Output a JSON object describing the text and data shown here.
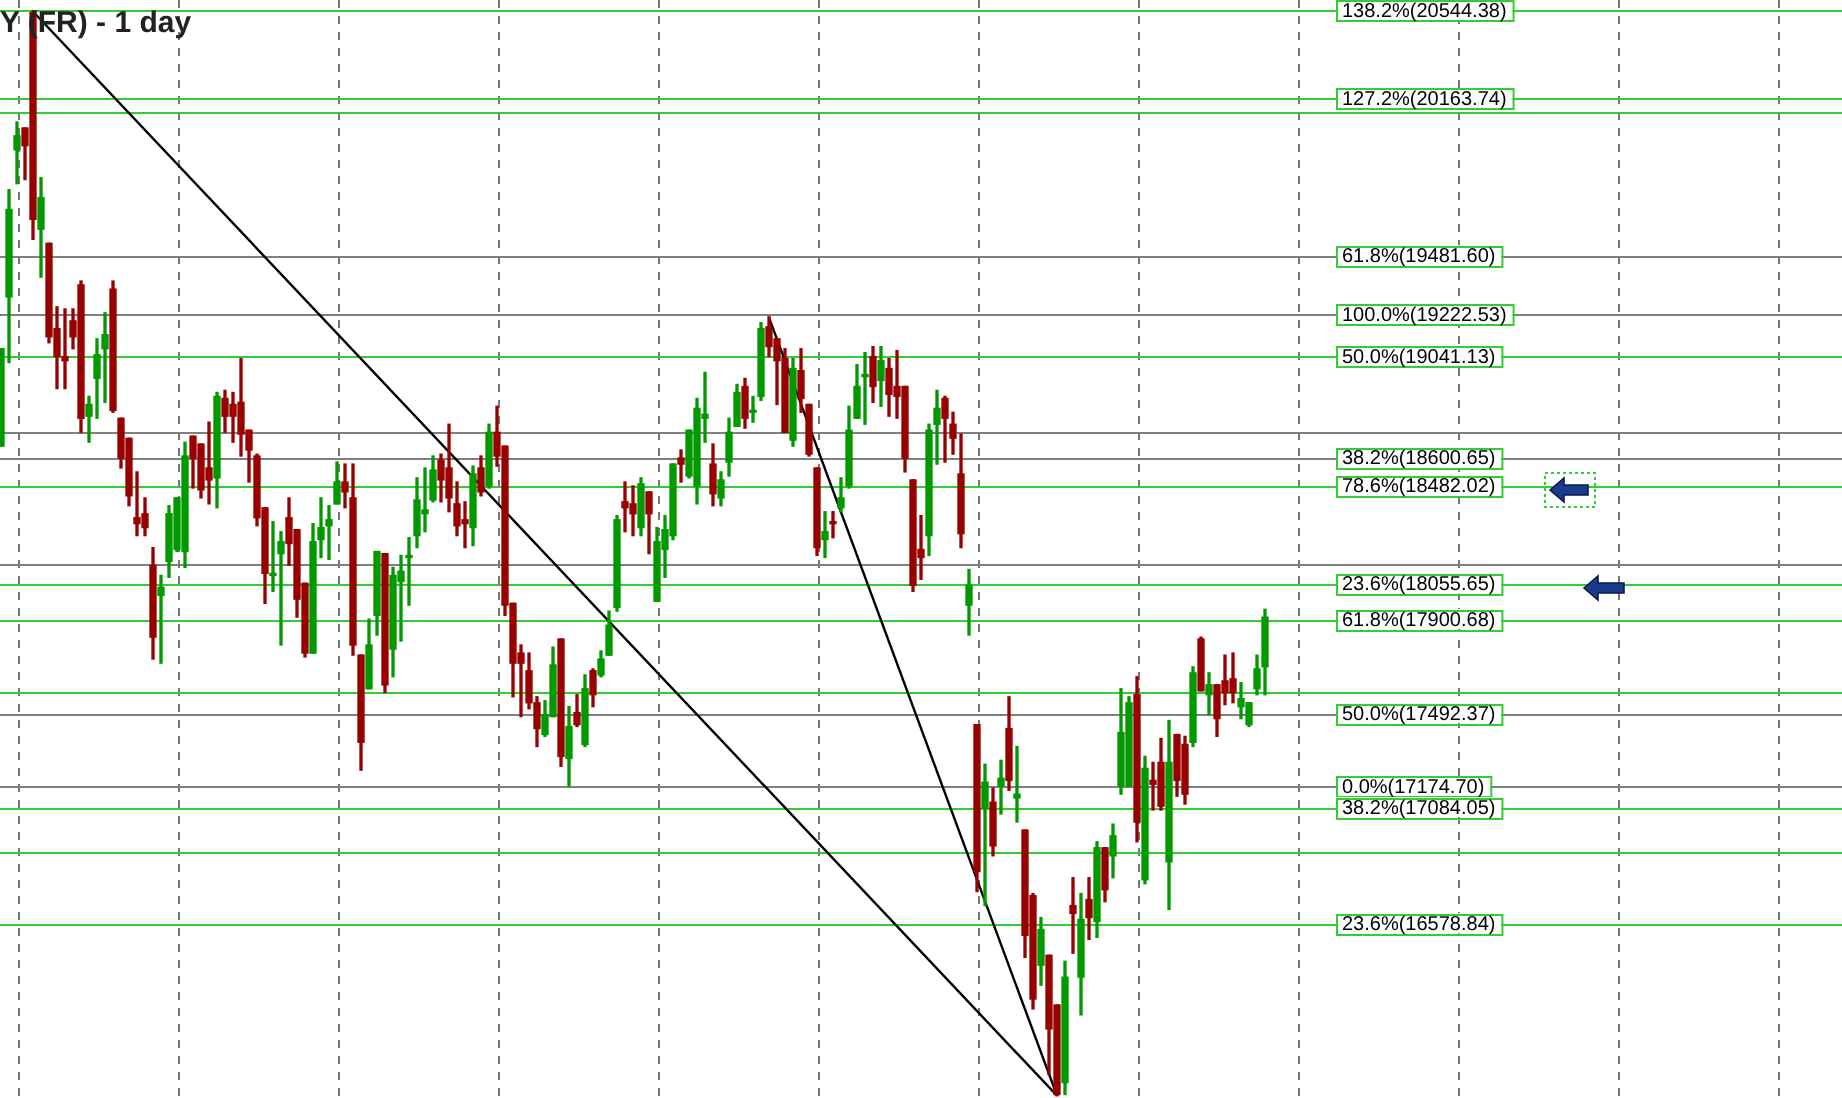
{
  "chart_data": {
    "type": "candlestick",
    "title": "Y (FR) - 1 day",
    "categories": [
      null,
      null,
      null,
      null,
      null,
      null,
      null,
      null,
      null,
      null,
      null,
      null,
      null,
      null,
      null,
      null,
      null,
      null,
      null,
      null,
      null,
      null,
      null,
      null,
      null,
      null,
      null,
      null,
      null,
      null,
      null,
      null,
      null,
      null,
      null,
      null,
      null,
      null,
      null,
      null,
      null,
      null,
      null,
      null,
      null,
      null,
      null,
      null,
      null,
      null,
      null,
      null,
      null,
      null,
      null,
      null,
      null,
      null,
      null,
      null,
      null,
      null,
      null,
      null,
      null,
      null,
      null,
      null,
      null,
      null,
      null,
      null,
      null,
      null,
      null,
      null,
      null,
      null,
      null,
      null,
      null,
      null,
      null,
      null,
      null,
      null,
      null,
      null,
      null,
      null,
      null,
      null,
      null,
      null,
      null,
      null,
      null,
      null,
      null,
      null,
      null,
      null,
      null,
      null,
      null,
      null,
      null,
      null,
      null,
      null,
      null,
      null,
      null,
      null,
      null,
      null,
      null,
      null,
      null,
      null,
      null,
      null,
      null,
      null,
      null,
      null,
      null,
      null,
      null,
      null,
      null,
      null,
      null,
      null,
      null,
      null,
      null,
      null,
      null,
      null,
      null,
      null,
      null,
      null,
      null,
      null,
      null,
      null,
      null,
      null,
      null,
      null,
      null,
      null,
      null,
      null,
      null,
      null,
      null
    ],
    "ohlc": [
      [
        18652,
        19075,
        18652,
        19075
      ],
      [
        19300,
        19766,
        19015,
        19680
      ],
      [
        19939,
        20060,
        19792,
        20000
      ],
      [
        20034,
        20034,
        19810,
        19957
      ],
      [
        20535,
        20544,
        19550,
        19637
      ],
      [
        19594,
        19818,
        19386,
        19732
      ],
      [
        19533,
        19533,
        19101,
        19127
      ],
      [
        19162,
        19257,
        18902,
        19041
      ],
      [
        19041,
        19248,
        18902,
        19023
      ],
      [
        19196,
        19248,
        19075,
        19127
      ],
      [
        19352,
        19369,
        18712,
        18773
      ],
      [
        18782,
        18868,
        18669,
        18833
      ],
      [
        18946,
        19118,
        18773,
        19049
      ],
      [
        19075,
        19231,
        18842,
        19136
      ],
      [
        19334,
        19369,
        18799,
        18807
      ],
      [
        18773,
        18773,
        18557,
        18600
      ],
      [
        18686,
        18686,
        18393,
        18436
      ],
      [
        18341,
        18540,
        18263,
        18315
      ],
      [
        18358,
        18427,
        18263,
        18298
      ],
      [
        18134,
        18211,
        17727,
        17822
      ],
      [
        18004,
        18090,
        17709,
        18038
      ],
      [
        18151,
        18393,
        18082,
        18358
      ],
      [
        18203,
        18427,
        18194,
        18427
      ],
      [
        18194,
        18669,
        18125,
        18609
      ],
      [
        18695,
        18695,
        18470,
        18600
      ],
      [
        18661,
        18661,
        18427,
        18462
      ],
      [
        18557,
        18756,
        18401,
        18505
      ],
      [
        18514,
        18885,
        18384,
        18868
      ],
      [
        18859,
        18894,
        18712,
        18782
      ],
      [
        18833,
        18885,
        18669,
        18782
      ],
      [
        18842,
        19032,
        18609,
        18704
      ],
      [
        18721,
        18721,
        18496,
        18635
      ],
      [
        18609,
        18617,
        18306,
        18341
      ],
      [
        18384,
        18384,
        17969,
        18099
      ],
      [
        18090,
        18324,
        18021,
        18099
      ],
      [
        18185,
        18280,
        17788,
        18237
      ],
      [
        18341,
        18427,
        18134,
        18229
      ],
      [
        18289,
        18289,
        17909,
        17987
      ],
      [
        18056,
        18056,
        17736,
        17753
      ],
      [
        17753,
        18315,
        17753,
        18237
      ],
      [
        18246,
        18427,
        18168,
        18298
      ],
      [
        18306,
        18393,
        18160,
        18332
      ],
      [
        18401,
        18583,
        18401,
        18496
      ],
      [
        18496,
        18574,
        18384,
        18453
      ],
      [
        18427,
        18574,
        17744,
        17788
      ],
      [
        17744,
        17744,
        17244,
        17365
      ],
      [
        17598,
        17900,
        17598,
        17788
      ],
      [
        17917,
        18194,
        17831,
        18194
      ],
      [
        18185,
        18185,
        17581,
        17615
      ],
      [
        17770,
        18125,
        17650,
        18090
      ],
      [
        18064,
        18177,
        17805,
        18108
      ],
      [
        18168,
        18254,
        17961,
        18177
      ],
      [
        18263,
        18514,
        18211,
        18418
      ],
      [
        18358,
        18557,
        18280,
        18375
      ],
      [
        18418,
        18609,
        18410,
        18548
      ],
      [
        18591,
        18617,
        18410,
        18505
      ],
      [
        18557,
        18747,
        18367,
        18427
      ],
      [
        18401,
        18496,
        18263,
        18306
      ],
      [
        18332,
        18410,
        18211,
        18315
      ],
      [
        18298,
        18565,
        18220,
        18531
      ],
      [
        18557,
        18609,
        18436,
        18453
      ],
      [
        18479,
        18747,
        18470,
        18712
      ],
      [
        18712,
        18825,
        18565,
        18609
      ],
      [
        18652,
        18652,
        17917,
        17961
      ],
      [
        17969,
        17969,
        17563,
        17709
      ],
      [
        17753,
        17788,
        17477,
        17709
      ],
      [
        17676,
        17753,
        17511,
        17537
      ],
      [
        17537,
        17563,
        17347,
        17425
      ],
      [
        17399,
        17546,
        17391,
        17485
      ],
      [
        17477,
        17779,
        17477,
        17701
      ],
      [
        17814,
        17814,
        17261,
        17304
      ],
      [
        17295,
        17520,
        17175,
        17434
      ],
      [
        17494,
        17572,
        17434,
        17442
      ],
      [
        17356,
        17658,
        17347,
        17598
      ],
      [
        17676,
        17684,
        17520,
        17572
      ],
      [
        17658,
        17762,
        17650,
        17727
      ],
      [
        17744,
        17935,
        17744,
        17874
      ],
      [
        17952,
        18350,
        17935,
        18332
      ],
      [
        18410,
        18496,
        18280,
        18384
      ],
      [
        18401,
        18479,
        18263,
        18358
      ],
      [
        18298,
        18514,
        18263,
        18488
      ],
      [
        18453,
        18453,
        18185,
        18358
      ],
      [
        17978,
        18298,
        17978,
        18237
      ],
      [
        18203,
        18350,
        18082,
        18289
      ],
      [
        18263,
        18574,
        18246,
        18574
      ],
      [
        18600,
        18635,
        18496,
        18574
      ],
      [
        18522,
        18721,
        18514,
        18721
      ],
      [
        18479,
        18859,
        18401,
        18816
      ],
      [
        18773,
        18972,
        18669,
        18790
      ],
      [
        18574,
        18661,
        18393,
        18445
      ],
      [
        18427,
        18540,
        18393,
        18505
      ],
      [
        18583,
        18773,
        18522,
        18712
      ],
      [
        18738,
        18920,
        18738,
        18885
      ],
      [
        18911,
        18946,
        18730,
        18773
      ],
      [
        18799,
        18868,
        18756,
        18807
      ],
      [
        18868,
        19188,
        18851,
        19162
      ],
      [
        19170,
        19214,
        19041,
        19084
      ],
      [
        19118,
        19118,
        18833,
        19023
      ],
      [
        19032,
        19075,
        18712,
        18712
      ],
      [
        18678,
        19032,
        18652,
        18989
      ],
      [
        18980,
        19075,
        18799,
        18859
      ],
      [
        18833,
        18833,
        18609,
        18617
      ],
      [
        18557,
        18557,
        18177,
        18211
      ],
      [
        18246,
        18367,
        18168,
        18280
      ],
      [
        18324,
        18367,
        18254,
        18315
      ],
      [
        18384,
        18514,
        18367,
        18427
      ],
      [
        18479,
        18825,
        18470,
        18721
      ],
      [
        18773,
        19006,
        18773,
        18911
      ],
      [
        18954,
        19058,
        18747,
        18963
      ],
      [
        19041,
        19084,
        18842,
        18911
      ],
      [
        18937,
        19084,
        18825,
        19023
      ],
      [
        18989,
        19032,
        18782,
        18877
      ],
      [
        18911,
        19067,
        18773,
        18868
      ],
      [
        18911,
        18911,
        18540,
        18600
      ],
      [
        18505,
        18505,
        18021,
        18047
      ],
      [
        18203,
        18350,
        18073,
        18168
      ],
      [
        18263,
        18747,
        18177,
        18721
      ],
      [
        18747,
        18894,
        18574,
        18816
      ],
      [
        18859,
        18868,
        18583,
        18773
      ],
      [
        18747,
        18799,
        18617,
        18686
      ],
      [
        18531,
        18704,
        18211,
        18272
      ],
      [
        17961,
        18116,
        17831,
        18047
      ],
      [
        17442,
        17442,
        16717,
        16804
      ],
      [
        17079,
        17270,
        16656,
        17192
      ],
      [
        17105,
        17166,
        16872,
        16915
      ],
      [
        17175,
        17287,
        17054,
        17209
      ],
      [
        17425,
        17563,
        17157,
        17200
      ],
      [
        17123,
        17347,
        17019,
        17140
      ],
      [
        16984,
        16984,
        16431,
        16527
      ],
      [
        16699,
        16708,
        16207,
        16250
      ],
      [
        16397,
        16604,
        16310,
        16552
      ],
      [
        16440,
        16440,
        15922,
        16120
      ],
      [
        16224,
        16224,
        15830,
        15835
      ],
      [
        15887,
        16414,
        15835,
        16345
      ],
      [
        16656,
        16777,
        16449,
        16622
      ],
      [
        16345,
        16708,
        16181,
        16596
      ],
      [
        16682,
        16777,
        16509,
        16604
      ],
      [
        16587,
        16933,
        16518,
        16907
      ],
      [
        16907,
        16907,
        16673,
        16725
      ],
      [
        16872,
        17010,
        16777,
        16959
      ],
      [
        17175,
        17598,
        17140,
        17408
      ],
      [
        17175,
        17563,
        17175,
        17537
      ],
      [
        17572,
        17650,
        16933,
        17019
      ],
      [
        16768,
        17304,
        16751,
        17252
      ],
      [
        17200,
        17278,
        17071,
        17183
      ],
      [
        17278,
        17382,
        17071,
        17088
      ],
      [
        16846,
        17460,
        16639,
        17278
      ],
      [
        17399,
        17399,
        17131,
        17200
      ],
      [
        17356,
        17391,
        17097,
        17140
      ],
      [
        17365,
        17693,
        17347,
        17667
      ],
      [
        17814,
        17822,
        17589,
        17589
      ],
      [
        17572,
        17667,
        17485,
        17615
      ],
      [
        17615,
        17615,
        17391,
        17468
      ],
      [
        17632,
        17744,
        17529,
        17581
      ],
      [
        17641,
        17753,
        17537,
        17581
      ],
      [
        17520,
        17624,
        17468,
        17555
      ],
      [
        17442,
        17537,
        17434,
        17537
      ],
      [
        17598,
        17744,
        17572,
        17684
      ],
      [
        17693,
        17943,
        17572,
        17909
      ]
    ],
    "colors": [
      "#009900",
      "#009900",
      "#009900",
      "#990000",
      "#990000",
      "#009900",
      "#990000",
      "#990000",
      "#990000",
      "#990000",
      "#990000",
      "#009900",
      "#009900",
      "#009900",
      "#990000",
      "#990000",
      "#990000",
      "#990000",
      "#990000",
      "#990000",
      "#009900",
      "#009900",
      "#009900",
      "#009900",
      "#990000",
      "#990000",
      "#990000",
      "#009900",
      "#990000",
      "#990000",
      "#990000",
      "#990000",
      "#990000",
      "#990000",
      "#009900",
      "#009900",
      "#990000",
      "#990000",
      "#990000",
      "#009900",
      "#009900",
      "#009900",
      "#009900",
      "#990000",
      "#990000",
      "#990000",
      "#009900",
      "#009900",
      "#990000",
      "#009900",
      "#009900",
      "#009900",
      "#009900",
      "#009900",
      "#009900",
      "#990000",
      "#990000",
      "#990000",
      "#990000",
      "#009900",
      "#990000",
      "#009900",
      "#990000",
      "#990000",
      "#990000",
      "#990000",
      "#990000",
      "#990000",
      "#009900",
      "#009900",
      "#990000",
      "#009900",
      "#990000",
      "#009900",
      "#990000",
      "#009900",
      "#009900",
      "#009900",
      "#990000",
      "#990000",
      "#009900",
      "#990000",
      "#009900",
      "#009900",
      "#009900",
      "#990000",
      "#009900",
      "#009900",
      "#009900",
      "#990000",
      "#009900",
      "#009900",
      "#009900",
      "#990000",
      "#009900",
      "#009900",
      "#990000",
      "#990000",
      "#990000",
      "#009900",
      "#990000",
      "#990000",
      "#990000",
      "#009900",
      "#990000",
      "#009900",
      "#009900",
      "#009900",
      "#009900",
      "#990000",
      "#009900",
      "#990000",
      "#990000",
      "#990000",
      "#990000",
      "#990000",
      "#009900",
      "#009900",
      "#990000",
      "#990000",
      "#990000",
      "#009900",
      "#990000",
      "#009900",
      "#990000",
      "#009900",
      "#990000",
      "#009900",
      "#990000",
      "#990000",
      "#009900",
      "#990000",
      "#990000",
      "#009900",
      "#990000",
      "#009900",
      "#990000",
      "#009900",
      "#990000",
      "#009900",
      "#009900",
      "#009900",
      "#990000",
      "#009900",
      "#990000",
      "#990000",
      "#009900",
      "#990000",
      "#990000",
      "#009900",
      "#990000",
      "#009900",
      "#990000",
      "#990000",
      "#990000",
      "#009900",
      "#009900",
      "#009900",
      "#009900"
    ],
    "series": [
      {
        "type": "line",
        "color": "#000000",
        "values": [
          null,
          null,
          null,
          null,
          20540,
          null,
          null,
          null,
          null,
          null,
          null,
          null,
          null,
          null,
          null,
          null,
          null,
          null,
          null,
          null,
          null,
          null,
          null,
          null,
          null,
          null,
          null,
          null,
          null,
          null,
          null,
          null,
          null,
          null,
          null,
          null,
          null,
          null,
          null,
          null,
          null,
          null,
          null,
          null,
          null,
          null,
          null,
          null,
          null,
          null,
          null,
          null,
          null,
          null,
          null,
          null,
          null,
          null,
          null,
          null,
          null,
          null,
          null,
          null,
          null,
          null,
          null,
          null,
          null,
          null,
          null,
          null,
          null,
          null,
          null,
          null,
          null,
          null,
          null,
          null,
          null,
          null,
          null,
          null,
          null,
          null,
          null,
          null,
          null,
          null,
          null,
          null,
          null,
          null,
          null,
          null,
          null,
          null,
          null,
          null,
          null,
          null,
          null,
          null,
          null,
          null,
          null,
          null,
          null,
          null,
          null,
          null,
          null,
          null,
          null,
          null,
          null,
          null,
          null,
          null,
          null,
          null,
          null,
          null,
          null,
          null,
          null,
          null,
          null,
          null,
          null,
          null,
          15830,
          null,
          null,
          null,
          null,
          null,
          null,
          null,
          null,
          null,
          null,
          null,
          null,
          null,
          null,
          null,
          null,
          null,
          null,
          null,
          null,
          null,
          null,
          null,
          null,
          null,
          null
        ]
      },
      {
        "type": "line",
        "color": "#000000",
        "values": [
          null,
          null,
          null,
          null,
          null,
          null,
          null,
          null,
          null,
          null,
          null,
          null,
          null,
          null,
          null,
          null,
          null,
          null,
          null,
          null,
          null,
          null,
          null,
          null,
          null,
          null,
          null,
          null,
          null,
          null,
          null,
          null,
          null,
          null,
          null,
          null,
          null,
          null,
          null,
          null,
          null,
          null,
          null,
          null,
          null,
          null,
          null,
          null,
          null,
          null,
          null,
          null,
          null,
          null,
          null,
          null,
          null,
          null,
          null,
          null,
          null,
          null,
          null,
          null,
          null,
          null,
          null,
          null,
          null,
          null,
          null,
          null,
          null,
          null,
          null,
          null,
          null,
          null,
          null,
          null,
          null,
          null,
          null,
          null,
          null,
          null,
          null,
          null,
          null,
          null,
          null,
          null,
          null,
          null,
          null,
          null,
          19210,
          null,
          null,
          null,
          null,
          null,
          null,
          null,
          null,
          null,
          null,
          null,
          null,
          null,
          null,
          null,
          null,
          null,
          null,
          null,
          null,
          null,
          null,
          null,
          null,
          null,
          null,
          null,
          null,
          null,
          null,
          null,
          null,
          null,
          null,
          null,
          15830,
          null,
          null,
          null,
          null,
          null,
          null,
          null,
          null,
          null,
          null,
          null,
          null,
          null,
          null,
          null,
          null,
          null,
          null,
          null,
          null,
          null,
          null,
          null,
          null,
          null,
          null
        ]
      }
    ],
    "ylim": [
      15820,
      20590
    ],
    "ref_lines": [
      {
        "axis": "y",
        "value": 20544.38,
        "label": "138.2%(20544.38)",
        "color": "#33cc33"
      },
      {
        "axis": "y",
        "value": 20163.74,
        "label": "127.2%(20163.74)",
        "color": "#33cc33"
      },
      {
        "axis": "y",
        "value": 20104,
        "color": "#33cc33"
      },
      {
        "axis": "y",
        "value": 19481.6,
        "label": "61.8%(19481.60)",
        "color": "#808080"
      },
      {
        "axis": "y",
        "value": 19222.53,
        "label": "100.0%(19222.53)",
        "color": "#808080"
      },
      {
        "axis": "y",
        "value": 19041.13,
        "label": "50.0%(19041.13)",
        "color": "#33cc33"
      },
      {
        "axis": "y",
        "value": 18712,
        "color": "#808080"
      },
      {
        "axis": "y",
        "value": 18600.65,
        "label": "38.2%(18600.65)",
        "color": "#808080"
      },
      {
        "axis": "y",
        "value": 18482.02,
        "label": "78.6%(18482.02)",
        "color": "#33cc33"
      },
      {
        "axis": "y",
        "value": 18142,
        "color": "#808080"
      },
      {
        "axis": "y",
        "value": 18055.65,
        "label": "23.6%(18055.65)",
        "color": "#33cc33"
      },
      {
        "axis": "y",
        "value": 17900.68,
        "label": "61.8%(17900.68)",
        "color": "#33cc33"
      },
      {
        "axis": "y",
        "value": 17580,
        "color": "#33cc33"
      },
      {
        "axis": "y",
        "value": 17492.37,
        "label": "50.0%(17492.37)",
        "color": "#808080"
      },
      {
        "axis": "y",
        "value": 17174.7,
        "label": "0.0%(17174.70)",
        "color": "#808080"
      },
      {
        "axis": "y",
        "value": 17084.05,
        "label": "38.2%(17084.05)",
        "color": "#33cc33"
      },
      {
        "axis": "y",
        "value": 16890,
        "color": "#33cc33"
      },
      {
        "axis": "y",
        "value": 16578.84,
        "label": "23.6%(16578.84)",
        "color": "#33cc33"
      }
    ],
    "grid": "x",
    "tick_labels": false,
    "legend": false
  }
}
